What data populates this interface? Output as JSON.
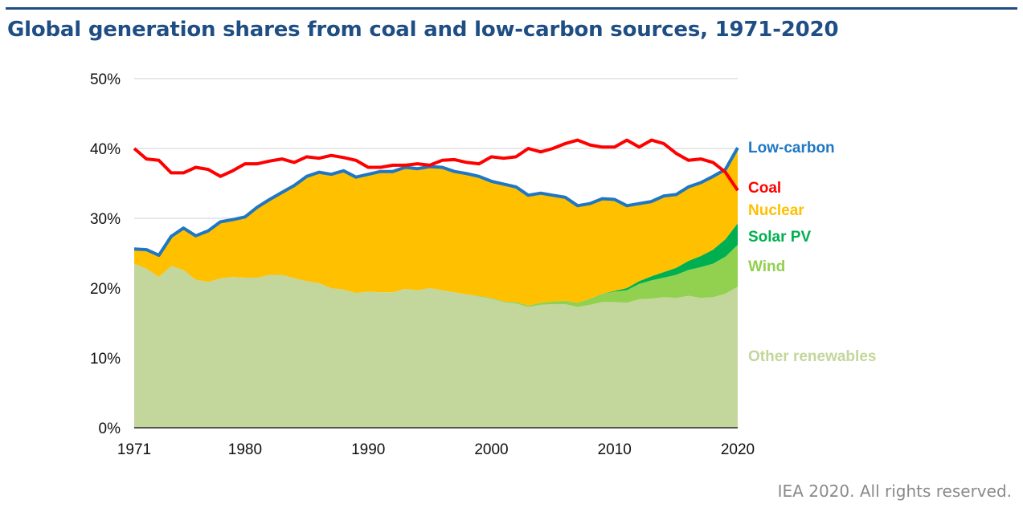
{
  "header": {
    "title": "Global generation shares from coal and low-carbon sources, 1971-2020"
  },
  "footer": {
    "credit": "IEA 2020. All rights reserved."
  },
  "chart_data": {
    "type": "area",
    "title": "Global generation shares from coal and low-carbon sources, 1971-2020",
    "xlabel": "",
    "ylabel": "",
    "ylim": [
      0,
      50
    ],
    "xlim": [
      1971,
      2020
    ],
    "grid": true,
    "legend_placement": "right (inline labels)",
    "y_ticks": [
      "0%",
      "10%",
      "20%",
      "30%",
      "40%",
      "50%"
    ],
    "y_tick_values": [
      0,
      10,
      20,
      30,
      40,
      50
    ],
    "x_ticks": [
      "1971",
      "1980",
      "1990",
      "2000",
      "2010",
      "2020"
    ],
    "x_tick_values": [
      1971,
      1980,
      1990,
      2000,
      2010,
      2020
    ],
    "x": [
      1971,
      1972,
      1973,
      1974,
      1975,
      1976,
      1977,
      1978,
      1979,
      1980,
      1981,
      1982,
      1983,
      1984,
      1985,
      1986,
      1987,
      1988,
      1989,
      1990,
      1991,
      1992,
      1993,
      1994,
      1995,
      1996,
      1997,
      1998,
      1999,
      2000,
      2001,
      2002,
      2003,
      2004,
      2005,
      2006,
      2007,
      2008,
      2009,
      2010,
      2011,
      2012,
      2013,
      2014,
      2015,
      2016,
      2017,
      2018,
      2019,
      2020
    ],
    "stacked_series": [
      {
        "name": "Other renewables",
        "color": "#c3d69b",
        "values": [
          23.5,
          22.8,
          21.6,
          23.2,
          22.6,
          21.2,
          20.9,
          21.4,
          21.6,
          21.5,
          21.5,
          21.9,
          21.9,
          21.4,
          21.0,
          20.7,
          20.0,
          19.8,
          19.3,
          19.5,
          19.4,
          19.4,
          19.9,
          19.7,
          20.0,
          19.7,
          19.4,
          19.1,
          18.8,
          18.5,
          18.0,
          17.8,
          17.3,
          17.6,
          17.7,
          17.7,
          17.3,
          17.6,
          18.0,
          18.0,
          17.9,
          18.4,
          18.5,
          18.7,
          18.6,
          18.9,
          18.6,
          18.7,
          19.2,
          20.2
        ]
      },
      {
        "name": "Wind",
        "color": "#92d050",
        "values": [
          0,
          0,
          0,
          0,
          0,
          0,
          0,
          0,
          0,
          0,
          0,
          0,
          0,
          0,
          0,
          0,
          0,
          0,
          0,
          0,
          0,
          0,
          0,
          0,
          0,
          0,
          0,
          0,
          0.1,
          0.1,
          0.1,
          0.2,
          0.2,
          0.3,
          0.4,
          0.5,
          0.6,
          0.9,
          1.2,
          1.5,
          1.8,
          2.2,
          2.6,
          2.8,
          3.3,
          3.7,
          4.4,
          4.8,
          5.3,
          6.0
        ]
      },
      {
        "name": "Solar PV",
        "color": "#00b050",
        "values": [
          0,
          0,
          0,
          0,
          0,
          0,
          0,
          0,
          0,
          0,
          0,
          0,
          0,
          0,
          0,
          0,
          0,
          0,
          0,
          0,
          0,
          0,
          0,
          0,
          0,
          0,
          0,
          0,
          0,
          0,
          0,
          0,
          0,
          0,
          0,
          0,
          0,
          0,
          0.0,
          0.1,
          0.3,
          0.4,
          0.6,
          0.8,
          1.0,
          1.3,
          1.6,
          2.0,
          2.5,
          3.1
        ]
      },
      {
        "name": "Nuclear",
        "color": "#ffc000",
        "values": [
          2.1,
          2.7,
          3.1,
          4.2,
          6.0,
          6.3,
          7.3,
          8.1,
          8.2,
          8.7,
          10.1,
          10.8,
          11.8,
          13.3,
          15.0,
          15.9,
          16.3,
          17.0,
          16.6,
          16.8,
          17.3,
          17.3,
          17.4,
          17.4,
          17.4,
          17.6,
          17.3,
          17.3,
          17.1,
          16.7,
          16.8,
          16.5,
          15.8,
          15.7,
          15.2,
          14.8,
          13.9,
          13.6,
          13.6,
          13.1,
          11.8,
          11.1,
          10.7,
          10.9,
          10.5,
          10.6,
          10.5,
          10.5,
          10.0,
          10.8
        ]
      }
    ],
    "line_series": [
      {
        "name": "Low-carbon",
        "color": "#1f77c4",
        "values": [
          25.6,
          25.5,
          24.7,
          27.4,
          28.6,
          27.5,
          28.2,
          29.5,
          29.8,
          30.2,
          31.6,
          32.7,
          33.7,
          34.7,
          36.0,
          36.6,
          36.3,
          36.8,
          35.9,
          36.3,
          36.7,
          36.7,
          37.3,
          37.1,
          37.4,
          37.3,
          36.7,
          36.4,
          36.0,
          35.3,
          34.9,
          34.5,
          33.3,
          33.6,
          33.3,
          33.0,
          31.8,
          32.1,
          32.8,
          32.7,
          31.8,
          32.1,
          32.4,
          33.2,
          33.4,
          34.5,
          35.1,
          36.0,
          37.0,
          40.1
        ]
      },
      {
        "name": "Coal",
        "color": "#ff0000",
        "values": [
          40.0,
          38.5,
          38.3,
          36.5,
          36.5,
          37.3,
          37.0,
          36.0,
          36.8,
          37.8,
          37.8,
          38.2,
          38.5,
          38.0,
          38.8,
          38.6,
          39.0,
          38.7,
          38.3,
          37.3,
          37.3,
          37.6,
          37.6,
          37.8,
          37.6,
          38.3,
          38.4,
          38.0,
          37.8,
          38.8,
          38.6,
          38.8,
          40.0,
          39.5,
          40.0,
          40.7,
          41.2,
          40.5,
          40.2,
          40.2,
          41.2,
          40.2,
          41.2,
          40.7,
          39.3,
          38.3,
          38.5,
          38.0,
          36.6,
          34.0
        ]
      }
    ],
    "inline_labels": [
      {
        "text": "Low-carbon",
        "color": "#1f77c4"
      },
      {
        "text": "Coal",
        "color": "#ff0000"
      },
      {
        "text": "Nuclear",
        "color": "#ffc000"
      },
      {
        "text": "Solar PV",
        "color": "#00b050"
      },
      {
        "text": "Wind",
        "color": "#92d050"
      },
      {
        "text": "Other renewables",
        "color": "#c3d69b"
      }
    ]
  }
}
